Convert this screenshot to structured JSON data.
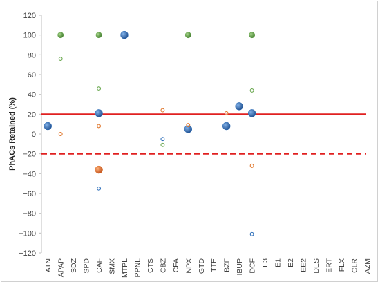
{
  "chart_data": {
    "type": "scatter",
    "title": "",
    "xlabel": "",
    "ylabel": "PhACs Retained (%)",
    "ylim": [
      -120,
      120
    ],
    "yticks": [
      120,
      100,
      80,
      60,
      40,
      20,
      0,
      -20,
      -40,
      -60,
      -80,
      -100,
      -120
    ],
    "grid": false,
    "legend": "none",
    "categories": [
      "ATN",
      "APAP",
      "SDZ",
      "SPD",
      "CAF",
      "SMX",
      "MTPL",
      "PPNL",
      "CTS",
      "CBZ",
      "CFA",
      "NPX",
      "GTD",
      "TTE",
      "BZF",
      "IBUP",
      "DCF",
      "E3",
      "E1",
      "E2",
      "EE2",
      "DES",
      "ERT",
      "FLX",
      "CLR",
      "AZM"
    ],
    "reference_lines": [
      {
        "y": 20,
        "style": "solid",
        "color": "#e02020"
      },
      {
        "y": -20,
        "style": "dashed",
        "color": "#e02020"
      }
    ],
    "series": [
      {
        "color": "#2e6fba",
        "points": [
          {
            "x": "ATN",
            "y": 8,
            "size": "large"
          },
          {
            "x": "CAF",
            "y": 21,
            "size": "large"
          },
          {
            "x": "MTPL",
            "y": 100,
            "size": "large"
          },
          {
            "x": "NPX",
            "y": 5,
            "size": "large"
          },
          {
            "x": "BZF",
            "y": 8,
            "size": "large"
          },
          {
            "x": "IBUP",
            "y": 28,
            "size": "large"
          },
          {
            "x": "DCF",
            "y": 21,
            "size": "large"
          },
          {
            "x": "CAF",
            "y": -55,
            "size": "small"
          },
          {
            "x": "CBZ",
            "y": -5,
            "size": "small"
          },
          {
            "x": "DCF",
            "y": -101,
            "size": "small"
          }
        ]
      },
      {
        "color": "#e0762b",
        "points": [
          {
            "x": "CAF",
            "y": -36,
            "size": "large"
          },
          {
            "x": "APAP",
            "y": 0,
            "size": "small"
          },
          {
            "x": "CAF",
            "y": 8,
            "size": "small"
          },
          {
            "x": "CBZ",
            "y": 24,
            "size": "small"
          },
          {
            "x": "NPX",
            "y": 9,
            "size": "small"
          },
          {
            "x": "BZF",
            "y": 21,
            "size": "small"
          },
          {
            "x": "DCF",
            "y": -32,
            "size": "small"
          }
        ]
      },
      {
        "color": "#6aa84f",
        "points": [
          {
            "x": "APAP",
            "y": 100,
            "size": "medium"
          },
          {
            "x": "CAF",
            "y": 100,
            "size": "medium"
          },
          {
            "x": "NPX",
            "y": 100,
            "size": "medium"
          },
          {
            "x": "DCF",
            "y": 100,
            "size": "medium"
          },
          {
            "x": "APAP",
            "y": 76,
            "size": "small"
          },
          {
            "x": "CAF",
            "y": 46,
            "size": "small"
          },
          {
            "x": "CBZ",
            "y": -11,
            "size": "small"
          },
          {
            "x": "DCF",
            "y": 44,
            "size": "small"
          }
        ]
      }
    ]
  }
}
